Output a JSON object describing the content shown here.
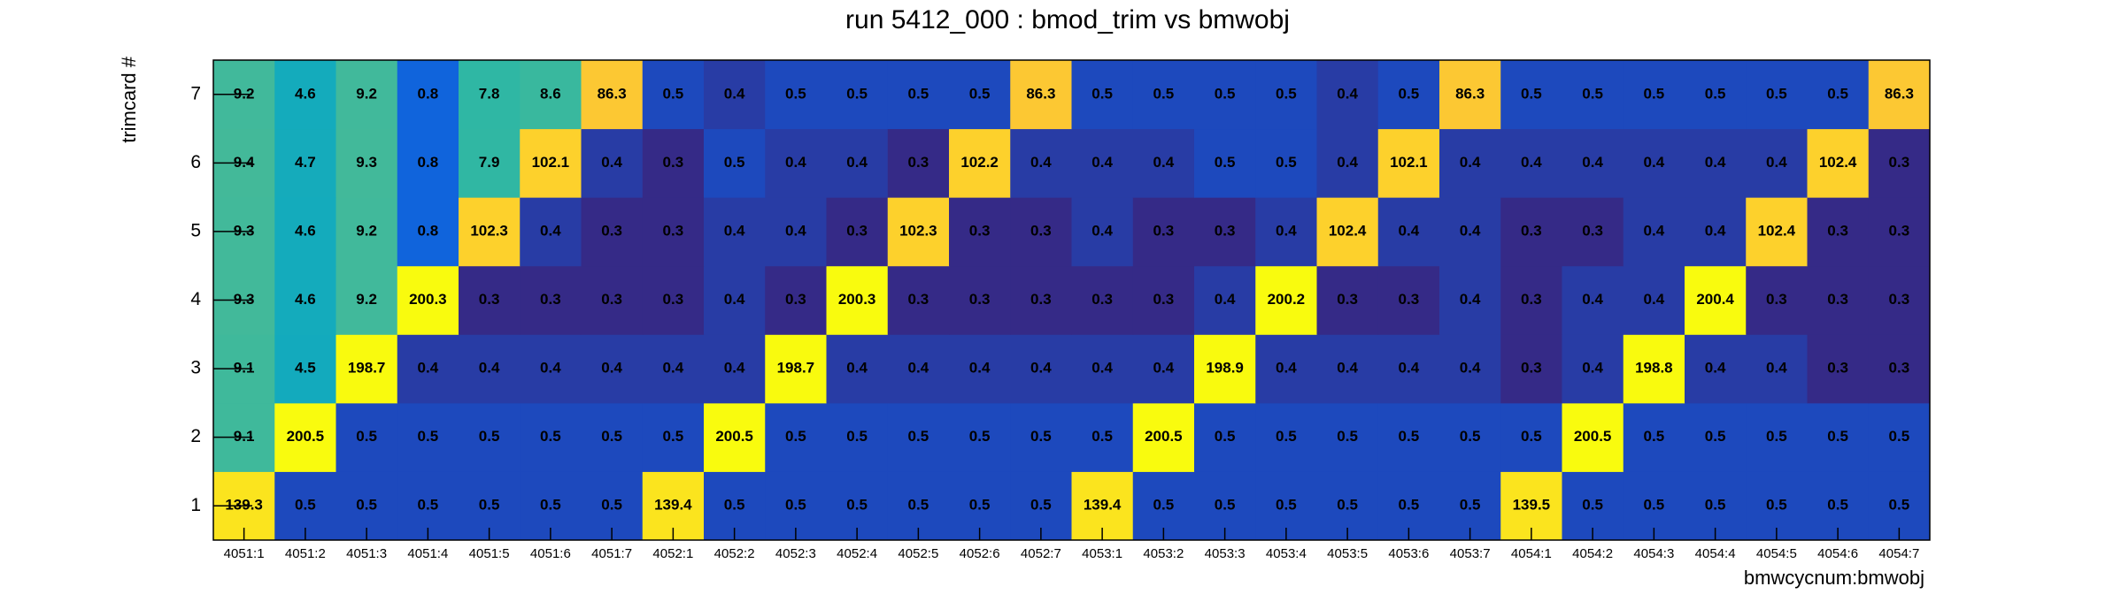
{
  "chart_data": {
    "type": "heatmap",
    "title": "run 5412_000 : bmod_trim vs bmwobj",
    "x_label": "bmwcycnum:bmwobj",
    "y_label": "trimcard #",
    "x_categories": [
      "4051:1",
      "4051:2",
      "4051:3",
      "4051:4",
      "4051:5",
      "4051:6",
      "4051:7",
      "4052:1",
      "4052:2",
      "4052:3",
      "4052:4",
      "4052:5",
      "4052:6",
      "4052:7",
      "4053:1",
      "4053:2",
      "4053:3",
      "4053:4",
      "4053:5",
      "4053:6",
      "4053:7",
      "4054:1",
      "4054:2",
      "4054:3",
      "4054:4",
      "4054:5",
      "4054:6",
      "4054:7"
    ],
    "y_categories": [
      "1",
      "2",
      "3",
      "4",
      "5",
      "6",
      "7"
    ],
    "values": [
      [
        139.3,
        0.5,
        0.5,
        0.5,
        0.5,
        0.5,
        0.5,
        139.4,
        0.5,
        0.5,
        0.5,
        0.5,
        0.5,
        0.5,
        139.4,
        0.5,
        0.5,
        0.5,
        0.5,
        0.5,
        0.5,
        139.5,
        0.5,
        0.5,
        0.5,
        0.5,
        0.5,
        0.5
      ],
      [
        9.1,
        200.5,
        0.5,
        0.5,
        0.5,
        0.5,
        0.5,
        0.5,
        200.5,
        0.5,
        0.5,
        0.5,
        0.5,
        0.5,
        0.5,
        200.5,
        0.5,
        0.5,
        0.5,
        0.5,
        0.5,
        0.5,
        200.5,
        0.5,
        0.5,
        0.5,
        0.5,
        0.5
      ],
      [
        9.1,
        4.5,
        198.7,
        0.4,
        0.4,
        0.4,
        0.4,
        0.4,
        0.4,
        198.7,
        0.4,
        0.4,
        0.4,
        0.4,
        0.4,
        0.4,
        198.9,
        0.4,
        0.4,
        0.4,
        0.4,
        0.3,
        0.4,
        198.8,
        0.4,
        0.4,
        0.3,
        0.3
      ],
      [
        9.3,
        4.6,
        9.2,
        200.3,
        0.3,
        0.3,
        0.3,
        0.3,
        0.4,
        0.3,
        200.3,
        0.3,
        0.3,
        0.3,
        0.3,
        0.3,
        0.4,
        200.2,
        0.3,
        0.3,
        0.4,
        0.3,
        0.4,
        0.4,
        200.4,
        0.3,
        0.3,
        0.3
      ],
      [
        9.3,
        4.6,
        9.2,
        0.8,
        102.3,
        0.4,
        0.3,
        0.3,
        0.4,
        0.4,
        0.3,
        102.3,
        0.3,
        0.3,
        0.4,
        0.3,
        0.3,
        0.4,
        102.4,
        0.4,
        0.4,
        0.3,
        0.3,
        0.4,
        0.4,
        102.4,
        0.3,
        0.3
      ],
      [
        9.4,
        4.7,
        9.3,
        0.8,
        7.9,
        102.1,
        0.4,
        0.3,
        0.5,
        0.4,
        0.4,
        0.3,
        102.2,
        0.4,
        0.4,
        0.4,
        0.5,
        0.5,
        0.4,
        102.1,
        0.4,
        0.4,
        0.4,
        0.4,
        0.4,
        0.4,
        102.4,
        0.3
      ],
      [
        9.2,
        4.6,
        9.2,
        0.8,
        7.8,
        8.6,
        86.3,
        0.5,
        0.4,
        0.5,
        0.5,
        0.5,
        0.5,
        86.3,
        0.5,
        0.5,
        0.5,
        0.5,
        0.4,
        0.5,
        86.3,
        0.5,
        0.5,
        0.5,
        0.5,
        0.5,
        0.5,
        86.3
      ]
    ],
    "zlim": [
      0.3,
      200.5
    ],
    "zlog": true,
    "colorscale": [
      "#352a87",
      "#0f5cdd",
      "#1481d6",
      "#06a4ca",
      "#2eb7a4",
      "#87bf77",
      "#d1bb59",
      "#fec832",
      "#f9fb0e"
    ]
  }
}
